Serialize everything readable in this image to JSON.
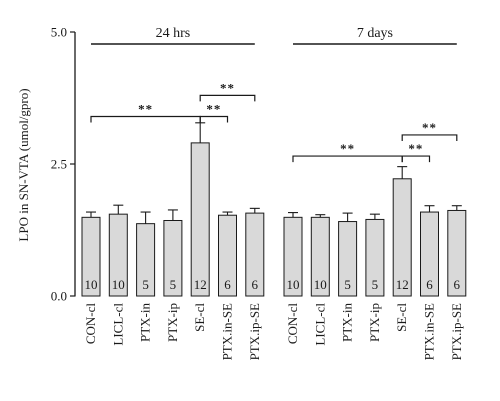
{
  "chart_data": {
    "type": "bar",
    "ylabel": "LPO in SN-VTA (umol/gpro)",
    "ylim": [
      0,
      5.0
    ],
    "y_ticks": [
      {
        "value": 0,
        "label": "0.0"
      },
      {
        "value": 2.5,
        "label": "2.5"
      },
      {
        "value": 5.0,
        "label": "5.0"
      }
    ],
    "bar_color": "#d9d9d9",
    "groups": [
      {
        "label": "24 hrs",
        "categories": [
          "CON-cl",
          "LICL-cl",
          "PTX-in",
          "PTX-ip",
          "SE-cl",
          "PTX.in-SE",
          "PTX.ip-SE"
        ],
        "values": [
          1.49,
          1.55,
          1.37,
          1.43,
          2.9,
          1.53,
          1.57
        ],
        "errors": [
          0.1,
          0.17,
          0.22,
          0.2,
          0.38,
          0.06,
          0.09
        ],
        "n": [
          "10",
          "10",
          "5",
          "5",
          "12",
          "6",
          "6"
        ]
      },
      {
        "label": "7 days",
        "categories": [
          "CON-cl",
          "LICL-cl",
          "PTX-in",
          "PTX-ip",
          "SE-cl",
          "PTX.in-SE",
          "PTX.ip-SE"
        ],
        "values": [
          1.49,
          1.49,
          1.41,
          1.45,
          2.22,
          1.59,
          1.62
        ],
        "errors": [
          0.09,
          0.05,
          0.16,
          0.1,
          0.23,
          0.12,
          0.09
        ],
        "n": [
          "10",
          "10",
          "5",
          "5",
          "12",
          "6",
          "6"
        ]
      }
    ],
    "significance": [
      {
        "group": 0,
        "from": 0,
        "to": 4,
        "y": 3.4,
        "label": "**"
      },
      {
        "group": 0,
        "from": 4,
        "to": 5,
        "y": 3.4,
        "label": "**"
      },
      {
        "group": 0,
        "from": 4,
        "to": 6,
        "y": 3.8,
        "label": "**"
      },
      {
        "group": 1,
        "from": 0,
        "to": 4,
        "y": 2.65,
        "label": "**"
      },
      {
        "group": 1,
        "from": 4,
        "to": 5,
        "y": 2.65,
        "label": "**"
      },
      {
        "group": 1,
        "from": 4,
        "to": 6,
        "y": 3.05,
        "label": "**"
      }
    ]
  }
}
